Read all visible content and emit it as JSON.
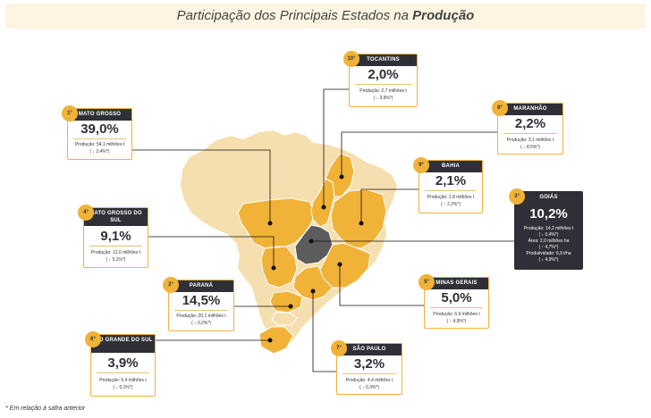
{
  "title_prefix": "Participação dos Principais Estados na",
  "title_emphasis": "Produção",
  "footnote": "* Em relação à safra anterior",
  "colors": {
    "highlight": "#F1B238",
    "dark": "#2F3037",
    "map_base": "#F6DFAE",
    "up": "#2E9E44",
    "down": "#D23B2A"
  },
  "chart_data": {
    "type": "table",
    "title": "Participação dos Principais Estados na Produção",
    "states": [
      {
        "rank": "1°",
        "name": "MATO GROSSO",
        "share": "39,0%",
        "production": "Produção: 54,1 milhões t",
        "change": "( ↓ 2,4%*)",
        "direction": "down"
      },
      {
        "rank": "2°",
        "name": "PARANÁ",
        "share": "14,5%",
        "production": "Produção: 20,1 milhões t",
        "change": "( ↓ 0,2%*)",
        "direction": "down"
      },
      {
        "rank": "3°",
        "name": "GOIÁS",
        "share": "10,2%",
        "production": "Produção: 14,2 milhões t",
        "change": "( ↓ 0,4%*)",
        "direction": "down",
        "area": "Área: 2,0 milhões ha",
        "area_change": "( ↑ 4,7%*)",
        "productivity": "Produtividade: 6,9 t/ha",
        "productivity_change": "( ↓ 4,9%*)"
      },
      {
        "rank": "4°",
        "name": "MATO GROSSO DO SUL",
        "share": "9,1%",
        "production": "Produção: 12,6 milhões t",
        "change": "( ↓ 5,1%*)",
        "direction": "down"
      },
      {
        "rank": "5°",
        "name": "MINAS GERAIS",
        "share": "5,0%",
        "production": "Produção: 6,9 milhões t",
        "change": "( ↑ 4,9%*)",
        "direction": "up"
      },
      {
        "rank": "6°",
        "name": "RIO GRANDE DO SUL",
        "share": "3,9%",
        "production": "Produção: 5,4 milhões t",
        "change": "( ↓ 0,1%*)",
        "direction": "down"
      },
      {
        "rank": "7°",
        "name": "SÃO PAULO",
        "share": "3,2%",
        "production": "Produção: 4,4 milhões t",
        "change": "( ↓ 0,3%*)",
        "direction": "down"
      },
      {
        "rank": "8°",
        "name": "MARANHÃO",
        "share": "2,2%",
        "production": "Produção: 3,1 milhões t",
        "change": "( ↓ 8,5%*)",
        "direction": "down"
      },
      {
        "rank": "9°",
        "name": "BAHIA",
        "share": "2,1%",
        "production": "Produção: 2,8 milhões t",
        "change": "( ↑ 2,2%*)",
        "direction": "up"
      },
      {
        "rank": "10°",
        "name": "TOCANTINS",
        "share": "2,0%",
        "production": "Produção: 2,7 milhões t",
        "change": "( ↓ 3,9%*)",
        "direction": "down"
      }
    ]
  }
}
